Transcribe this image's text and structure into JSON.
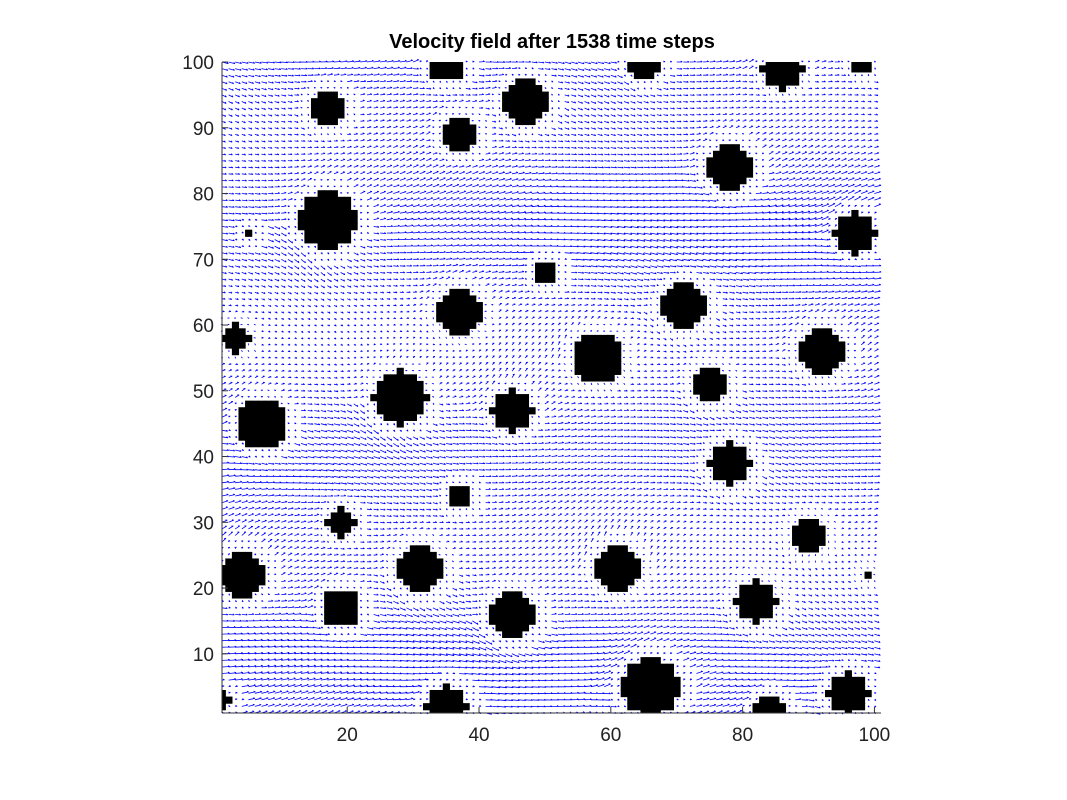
{
  "chart_data": {
    "type": "quiver",
    "title": "Velocity field after 1538 time steps",
    "xlabel": "",
    "ylabel": "",
    "xlim": [
      1,
      101
    ],
    "ylim": [
      1,
      100
    ],
    "x_ticks": [
      20,
      40,
      60,
      80,
      100
    ],
    "y_ticks": [
      10,
      20,
      30,
      40,
      50,
      60,
      70,
      80,
      90,
      100
    ],
    "x_tick_labels": [
      "20",
      "40",
      "60",
      "80",
      "100"
    ],
    "y_tick_labels": [
      "10",
      "20",
      "30",
      "40",
      "50",
      "60",
      "70",
      "80",
      "90",
      "100"
    ],
    "arrow_color": "#0000ff",
    "obstacle_color": "#000000",
    "grid": false,
    "obstacles": [
      {
        "x": 35,
        "y": 100,
        "r": 2.8
      },
      {
        "x": 65,
        "y": 100,
        "r": 2.2
      },
      {
        "x": 86,
        "y": 99,
        "r": 3
      },
      {
        "x": 98,
        "y": 100,
        "r": 1.5
      },
      {
        "x": 47,
        "y": 94,
        "r": 3.3
      },
      {
        "x": 17,
        "y": 93,
        "r": 2.5
      },
      {
        "x": 37,
        "y": 89,
        "r": 2.5
      },
      {
        "x": 78,
        "y": 84,
        "r": 3.4
      },
      {
        "x": 17,
        "y": 76,
        "r": 4.4
      },
      {
        "x": 97,
        "y": 74,
        "r": 3
      },
      {
        "x": 5,
        "y": 74,
        "r": 0.6
      },
      {
        "x": 50,
        "y": 68,
        "r": 1.7
      },
      {
        "x": 71,
        "y": 63,
        "r": 3.3
      },
      {
        "x": 37,
        "y": 62,
        "r": 3.2
      },
      {
        "x": 3,
        "y": 58,
        "r": 2
      },
      {
        "x": 58,
        "y": 55,
        "r": 3.7
      },
      {
        "x": 92,
        "y": 56,
        "r": 3.4
      },
      {
        "x": 75,
        "y": 51,
        "r": 2.7
      },
      {
        "x": 28,
        "y": 49,
        "r": 4
      },
      {
        "x": 45,
        "y": 47,
        "r": 3
      },
      {
        "x": 7,
        "y": 45,
        "r": 3.6
      },
      {
        "x": 78,
        "y": 39,
        "r": 3.1
      },
      {
        "x": 37,
        "y": 34,
        "r": 1.8
      },
      {
        "x": 19,
        "y": 30,
        "r": 2
      },
      {
        "x": 90,
        "y": 28,
        "r": 2.5
      },
      {
        "x": 61,
        "y": 23,
        "r": 3.3
      },
      {
        "x": 4,
        "y": 22,
        "r": 3.4
      },
      {
        "x": 31,
        "y": 23,
        "r": 3.4
      },
      {
        "x": 99,
        "y": 22,
        "r": 0.6
      },
      {
        "x": 82,
        "y": 18,
        "r": 3.1
      },
      {
        "x": 19,
        "y": 17,
        "r": 2.8
      },
      {
        "x": 45,
        "y": 16,
        "r": 3.5
      },
      {
        "x": 66,
        "y": 5,
        "r": 4.4
      },
      {
        "x": 96,
        "y": 4,
        "r": 3.1
      },
      {
        "x": 35,
        "y": 2,
        "r": 3.1
      },
      {
        "x": 84,
        "y": 1,
        "r": 2.3
      },
      {
        "x": 1,
        "y": 3,
        "r": 1.1
      }
    ]
  }
}
